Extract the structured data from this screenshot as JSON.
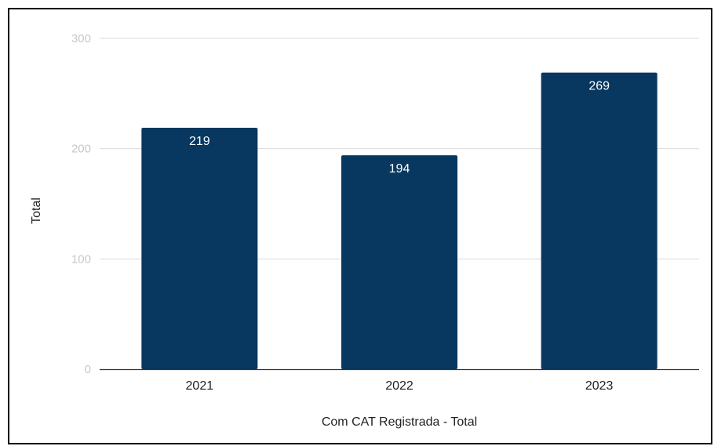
{
  "chart_data": {
    "type": "bar",
    "categories": [
      "2021",
      "2022",
      "2023"
    ],
    "values": [
      219,
      194,
      269
    ],
    "data_labels": [
      "219",
      "194",
      "269"
    ],
    "title": "",
    "xlabel": "Com CAT Registrada - Total",
    "ylabel": "Total",
    "ylim": [
      0,
      300
    ],
    "yticks": [
      0,
      100,
      200,
      300
    ],
    "ytick_labels": [
      "0",
      "100",
      "200",
      "300"
    ],
    "grid": true,
    "legend": "none",
    "colors": {
      "bar": "#08375f",
      "gridline": "#d9d9d9",
      "baseline": "#333333",
      "data_label": "#ffffff"
    }
  }
}
